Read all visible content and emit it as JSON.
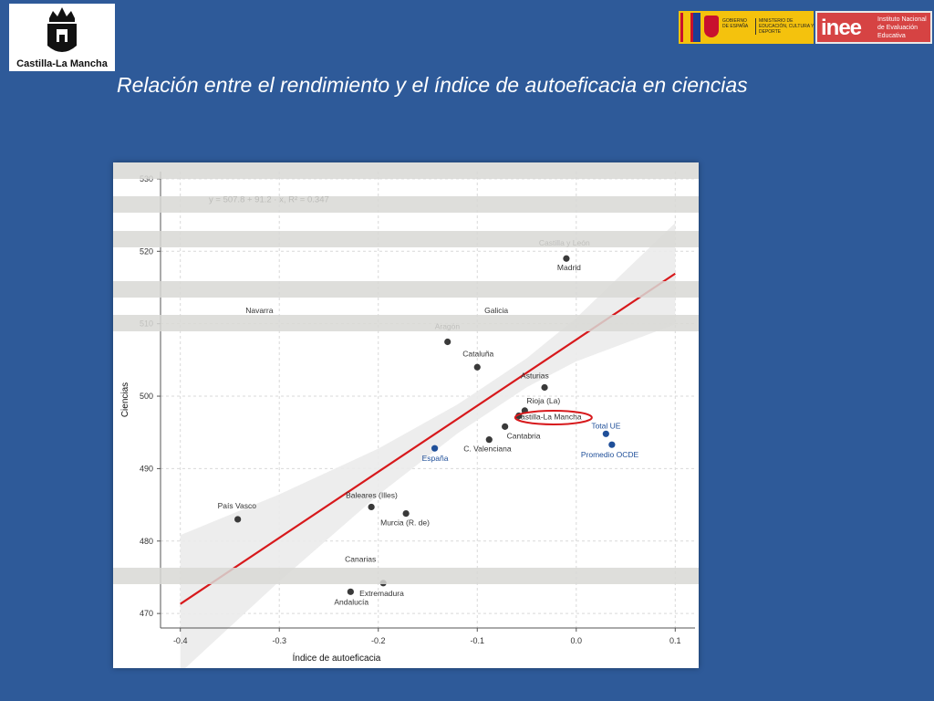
{
  "header": {
    "title": "Relación entre el rendimiento y el índice de autoeficacia en ciencias",
    "logo_left_text": "Castilla-La Mancha",
    "gov_logo": {
      "line1": "GOBIERNO DE ESPAÑA",
      "line2": "MINISTERIO DE EDUCACIÓN, CULTURA Y DEPORTE"
    },
    "inee_logo": {
      "mark": "inee",
      "text": "Instituto Nacional de Evaluación Educativa"
    }
  },
  "colors": {
    "background": "#2e5a99",
    "point_default": "#3a3a3a",
    "point_highlight": "#1f4f99",
    "regression_line": "#d7191c",
    "confidence_band": "#ebebeb"
  },
  "chart_data": {
    "type": "scatter",
    "title": "",
    "xlabel": "Índice de autoeficacia",
    "ylabel": "Ciencias",
    "xlim": [
      -0.42,
      0.12
    ],
    "ylim": [
      468,
      531
    ],
    "xticks": [
      -0.4,
      -0.3,
      -0.2,
      -0.1,
      0.0,
      0.1
    ],
    "xtick_labels": [
      "-0.4",
      "-0.3",
      "-0.2",
      "-0.1",
      "0.0",
      "0.1"
    ],
    "yticks": [
      470,
      480,
      490,
      500,
      510,
      520,
      530
    ],
    "ytick_labels": [
      "470",
      "480",
      "490",
      "500",
      "510",
      "520",
      "530"
    ],
    "grid": true,
    "equation": "y = 507.8 + 91.2 · x,  R² = 0.347",
    "regression": {
      "intercept": 507.8,
      "slope": 91.2,
      "x_range": [
        -0.4,
        0.1
      ]
    },
    "points": [
      {
        "label": "Castilla y León",
        "x": -0.01,
        "y": 519.0,
        "group": "region"
      },
      {
        "label": "Madrid",
        "x": -0.01,
        "y": 519.0,
        "group": "region"
      },
      {
        "label": "Navarra",
        "x": -0.265,
        "y": 512.0,
        "group": "region"
      },
      {
        "label": "Galicia",
        "x": -0.09,
        "y": 512.0,
        "group": "region"
      },
      {
        "label": "Aragón",
        "x": -0.13,
        "y": 507.5,
        "group": "region"
      },
      {
        "label": "Cataluña",
        "x": -0.1,
        "y": 504.0,
        "group": "region"
      },
      {
        "label": "Asturias",
        "x": -0.032,
        "y": 501.2,
        "group": "region"
      },
      {
        "label": "Rioja (La)",
        "x": -0.052,
        "y": 498.0,
        "group": "region"
      },
      {
        "label": "Castilla-La Mancha",
        "x": -0.058,
        "y": 497.3,
        "group": "region"
      },
      {
        "label": "Cantabria",
        "x": -0.072,
        "y": 495.8,
        "group": "region"
      },
      {
        "label": "C. Valenciana",
        "x": -0.088,
        "y": 494.0,
        "group": "region"
      },
      {
        "label": "España",
        "x": -0.143,
        "y": 492.8,
        "group": "aggregate"
      },
      {
        "label": "Total UE",
        "x": 0.03,
        "y": 494.8,
        "group": "aggregate"
      },
      {
        "label": "Promedio OCDE",
        "x": 0.036,
        "y": 493.3,
        "group": "aggregate"
      },
      {
        "label": "Baleares (Illes)",
        "x": -0.207,
        "y": 484.7,
        "group": "region"
      },
      {
        "label": "Murcia (R. de)",
        "x": -0.172,
        "y": 483.8,
        "group": "region"
      },
      {
        "label": "País Vasco",
        "x": -0.342,
        "y": 483.0,
        "group": "region"
      },
      {
        "label": "Canarias",
        "x": -0.23,
        "y": 476.0,
        "group": "region"
      },
      {
        "label": "Extremadura",
        "x": -0.195,
        "y": 474.2,
        "group": "region"
      },
      {
        "label": "Andalucía",
        "x": -0.228,
        "y": 473.0,
        "group": "region"
      }
    ],
    "highlighted": "Castilla-La Mancha"
  }
}
